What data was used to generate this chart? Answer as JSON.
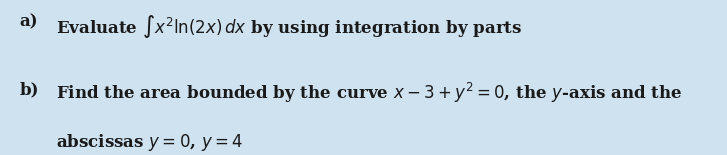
{
  "background_color": "#cfe2f0",
  "fig_width": 7.27,
  "fig_height": 1.55,
  "dpi": 100,
  "label_a": "a)",
  "label_b": "b)",
  "text_a": "Evaluate $\\int x^2 \\ln(2x)\\,dx$ by using integration by parts",
  "text_b1": "Find the area bounded by the curve $x-3+y^2=0$, the $y$-axis and the",
  "text_b2": "abscissas $y=0$, $y=4$",
  "font_size": 12,
  "label_font_size": 12,
  "font_color": "#1a1a1a",
  "font_family": "serif",
  "font_weight": "bold"
}
